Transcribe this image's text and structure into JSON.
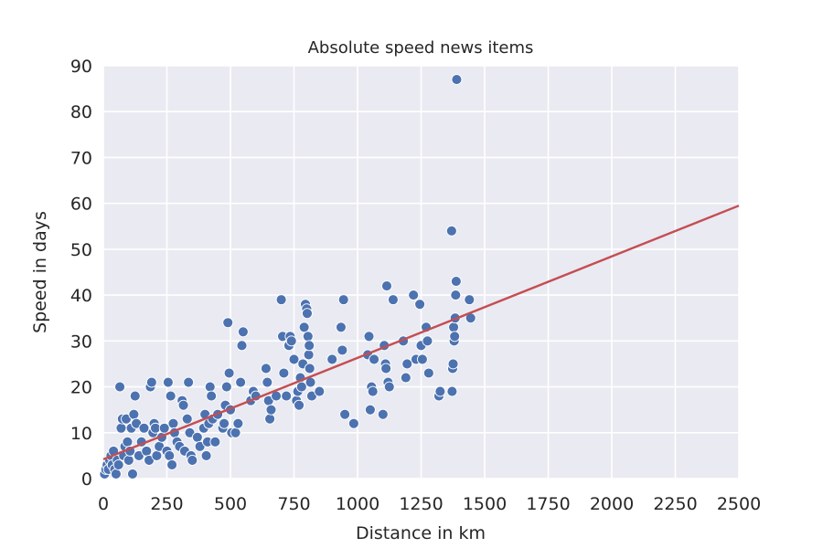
{
  "chart_data": {
    "type": "scatter",
    "title": "Absolute speed news items",
    "xlabel": "Distance in km",
    "ylabel": "Speed in days",
    "xlim": [
      0,
      2500
    ],
    "ylim": [
      0,
      90
    ],
    "xticks": [
      0,
      250,
      500,
      750,
      1000,
      1250,
      1500,
      1750,
      2000,
      2250,
      2500
    ],
    "yticks": [
      0,
      10,
      20,
      30,
      40,
      50,
      60,
      70,
      80,
      90
    ],
    "grid": true,
    "background": "#eaeaf2",
    "point_color": "#4c72b0",
    "line_color": "#c44e52",
    "regression_line": {
      "x": [
        0,
        2500
      ],
      "y": [
        4.2,
        59.5
      ]
    },
    "points": [
      [
        5,
        1
      ],
      [
        10,
        2
      ],
      [
        15,
        3
      ],
      [
        20,
        2
      ],
      [
        25,
        4
      ],
      [
        30,
        5
      ],
      [
        35,
        3
      ],
      [
        40,
        6
      ],
      [
        45,
        2
      ],
      [
        50,
        1
      ],
      [
        55,
        4
      ],
      [
        60,
        3
      ],
      [
        65,
        20
      ],
      [
        70,
        11
      ],
      [
        75,
        13
      ],
      [
        80,
        5
      ],
      [
        85,
        7
      ],
      [
        90,
        13
      ],
      [
        95,
        8
      ],
      [
        100,
        4
      ],
      [
        105,
        6
      ],
      [
        110,
        11
      ],
      [
        115,
        1
      ],
      [
        120,
        14
      ],
      [
        125,
        18
      ],
      [
        130,
        12
      ],
      [
        140,
        5
      ],
      [
        150,
        8
      ],
      [
        160,
        11
      ],
      [
        170,
        6
      ],
      [
        180,
        4
      ],
      [
        185,
        20
      ],
      [
        190,
        21
      ],
      [
        195,
        10
      ],
      [
        200,
        12
      ],
      [
        205,
        11
      ],
      [
        210,
        5
      ],
      [
        220,
        7
      ],
      [
        230,
        9
      ],
      [
        240,
        11
      ],
      [
        250,
        6
      ],
      [
        255,
        21
      ],
      [
        260,
        5
      ],
      [
        265,
        18
      ],
      [
        270,
        3
      ],
      [
        275,
        12
      ],
      [
        280,
        10
      ],
      [
        290,
        8
      ],
      [
        300,
        7
      ],
      [
        310,
        17
      ],
      [
        315,
        16
      ],
      [
        320,
        6
      ],
      [
        330,
        13
      ],
      [
        335,
        21
      ],
      [
        340,
        10
      ],
      [
        345,
        5
      ],
      [
        350,
        4
      ],
      [
        370,
        9
      ],
      [
        380,
        7
      ],
      [
        395,
        11
      ],
      [
        400,
        14
      ],
      [
        405,
        5
      ],
      [
        410,
        8
      ],
      [
        415,
        12
      ],
      [
        420,
        20
      ],
      [
        425,
        18
      ],
      [
        430,
        13
      ],
      [
        440,
        8
      ],
      [
        450,
        14
      ],
      [
        470,
        11
      ],
      [
        475,
        12
      ],
      [
        480,
        16
      ],
      [
        485,
        20
      ],
      [
        490,
        34
      ],
      [
        495,
        23
      ],
      [
        500,
        15
      ],
      [
        505,
        10
      ],
      [
        520,
        10
      ],
      [
        530,
        12
      ],
      [
        540,
        21
      ],
      [
        545,
        29
      ],
      [
        550,
        32
      ],
      [
        580,
        17
      ],
      [
        590,
        19
      ],
      [
        600,
        18
      ],
      [
        640,
        24
      ],
      [
        645,
        21
      ],
      [
        650,
        17
      ],
      [
        655,
        13
      ],
      [
        660,
        15
      ],
      [
        680,
        18
      ],
      [
        700,
        39
      ],
      [
        705,
        31
      ],
      [
        710,
        23
      ],
      [
        720,
        18
      ],
      [
        730,
        29
      ],
      [
        735,
        31
      ],
      [
        740,
        30
      ],
      [
        750,
        26
      ],
      [
        760,
        17
      ],
      [
        765,
        19
      ],
      [
        770,
        16
      ],
      [
        775,
        22
      ],
      [
        780,
        20
      ],
      [
        785,
        25
      ],
      [
        790,
        33
      ],
      [
        795,
        38
      ],
      [
        800,
        37
      ],
      [
        802,
        36
      ],
      [
        805,
        31
      ],
      [
        808,
        27
      ],
      [
        810,
        29
      ],
      [
        812,
        24
      ],
      [
        815,
        21
      ],
      [
        820,
        18
      ],
      [
        850,
        19
      ],
      [
        900,
        26
      ],
      [
        935,
        33
      ],
      [
        940,
        28
      ],
      [
        945,
        39
      ],
      [
        950,
        14
      ],
      [
        985,
        12
      ],
      [
        1040,
        27
      ],
      [
        1045,
        31
      ],
      [
        1050,
        15
      ],
      [
        1055,
        20
      ],
      [
        1060,
        19
      ],
      [
        1065,
        26
      ],
      [
        1100,
        14
      ],
      [
        1105,
        29
      ],
      [
        1110,
        25
      ],
      [
        1112,
        24
      ],
      [
        1115,
        42
      ],
      [
        1120,
        21
      ],
      [
        1125,
        20
      ],
      [
        1140,
        39
      ],
      [
        1180,
        30
      ],
      [
        1190,
        22
      ],
      [
        1195,
        25
      ],
      [
        1220,
        40
      ],
      [
        1230,
        26
      ],
      [
        1245,
        38
      ],
      [
        1250,
        29
      ],
      [
        1255,
        26
      ],
      [
        1270,
        33
      ],
      [
        1275,
        30
      ],
      [
        1280,
        23
      ],
      [
        1320,
        18
      ],
      [
        1325,
        19
      ],
      [
        1370,
        54
      ],
      [
        1372,
        19
      ],
      [
        1374,
        24
      ],
      [
        1376,
        25
      ],
      [
        1378,
        33
      ],
      [
        1380,
        30
      ],
      [
        1382,
        31
      ],
      [
        1384,
        35
      ],
      [
        1386,
        40
      ],
      [
        1388,
        43
      ],
      [
        1390,
        87
      ],
      [
        1440,
        39
      ],
      [
        1445,
        35
      ]
    ]
  }
}
